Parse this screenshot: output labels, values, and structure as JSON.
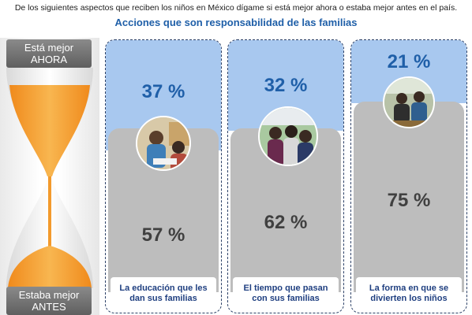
{
  "header": {
    "question": "De los siguientes aspectos que reciben los niños en México dígame si está mejor ahora o estaba mejor antes en el país.",
    "subtitle": "Acciones que son responsabilidad de las familias"
  },
  "side": {
    "top_line1": "Está mejor",
    "top_line2": "AHORA",
    "bottom_line1": "Estaba mejor",
    "bottom_line2": "ANTES"
  },
  "columns": [
    {
      "better_now": "37 %",
      "better_before": "57 %",
      "label_line1": "La educación que les",
      "label_line2": "dan sus familias"
    },
    {
      "better_now": "32 %",
      "better_before": "62 %",
      "label_line1": "El tiempo que pasan",
      "label_line2": "con sus familias"
    },
    {
      "better_now": "21 %",
      "better_before": "75 %",
      "label_line1": "La forma en que se",
      "label_line2": "divierten los niños"
    }
  ],
  "colors": {
    "title_blue": "#1f5fa8",
    "panel_blue": "#a8c8ef",
    "panel_gray": "#bdbdbd",
    "sand_orange": "#f6a43a"
  }
}
